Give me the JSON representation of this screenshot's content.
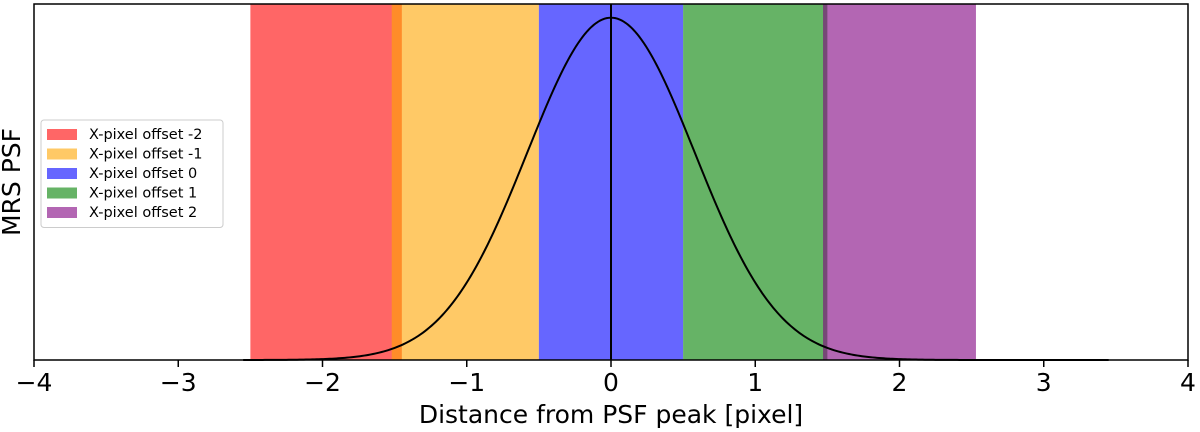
{
  "chart_data": {
    "type": "area",
    "title": "",
    "xlabel": "Distance from PSF peak [pixel]",
    "ylabel": "MRS PSF",
    "xlim": [
      -4,
      4
    ],
    "ylim": [
      0,
      1.04
    ],
    "x_ticks": [
      -4,
      -3,
      -2,
      -1,
      0,
      1,
      2,
      3,
      4
    ],
    "x_tick_labels": [
      "−4",
      "−3",
      "−2",
      "−1",
      "0",
      "1",
      "2",
      "3",
      "4"
    ],
    "y_ticks_shown": false,
    "grid": false,
    "legend_placement": "center-left",
    "bands": [
      {
        "name": "X-pixel offset -2",
        "x_start": -2.5,
        "x_end": -1.45,
        "color": "#ff0000",
        "opacity": 0.6
      },
      {
        "name": "X-pixel offset -1",
        "x_start": -1.52,
        "x_end": -0.5,
        "color": "#ffa500",
        "opacity": 0.6
      },
      {
        "name": "X-pixel offset 0",
        "x_start": -0.5,
        "x_end": 0.5,
        "color": "#0000ff",
        "opacity": 0.6
      },
      {
        "name": "X-pixel offset 1",
        "x_start": 0.5,
        "x_end": 1.5,
        "color": "#008000",
        "opacity": 0.6
      },
      {
        "name": "X-pixel offset 2",
        "x_start": 1.47,
        "x_end": 2.53,
        "color": "#800080",
        "opacity": 0.6
      }
    ],
    "curve": {
      "shape": "gaussian",
      "center": 0,
      "peak": 1.0,
      "sigma": 0.58,
      "x_start": -2.55,
      "x_end": 3.45,
      "color": "#000000"
    },
    "vertical_line": {
      "x": 0,
      "color": "#000000"
    }
  }
}
